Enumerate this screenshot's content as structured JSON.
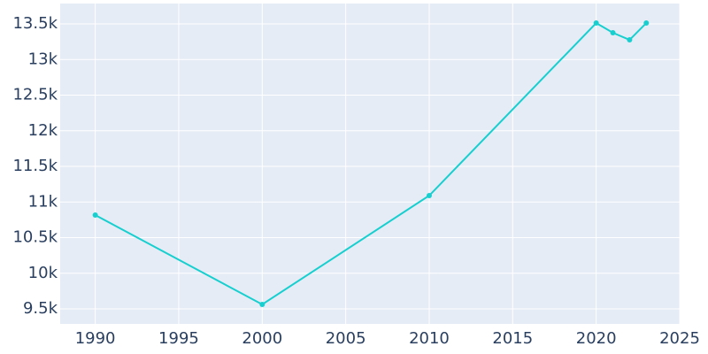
{
  "chart_data": {
    "type": "line",
    "x": [
      1990,
      2000,
      2010,
      2020,
      2021,
      2022,
      2023
    ],
    "series": [
      {
        "color": "#17cfcf",
        "values": [
          10817,
          9562,
          11090,
          13512,
          13376,
          13276,
          13512
        ]
      }
    ],
    "xlim": [
      1987.9,
      2025
    ],
    "xticks": [
      1990,
      1995,
      2000,
      2005,
      2010,
      2015,
      2020,
      2025
    ],
    "ylim": [
      9289,
      13786
    ],
    "yticks": [
      {
        "value": 9500,
        "label": "9.5k"
      },
      {
        "value": 10000,
        "label": "10k"
      },
      {
        "value": 10500,
        "label": "10.5k"
      },
      {
        "value": 11000,
        "label": "11k"
      },
      {
        "value": 11500,
        "label": "11.5k"
      },
      {
        "value": 12000,
        "label": "12k"
      },
      {
        "value": 12500,
        "label": "12.5k"
      },
      {
        "value": 13000,
        "label": "13k"
      },
      {
        "value": 13500,
        "label": "13.5k"
      }
    ],
    "grid": true
  }
}
